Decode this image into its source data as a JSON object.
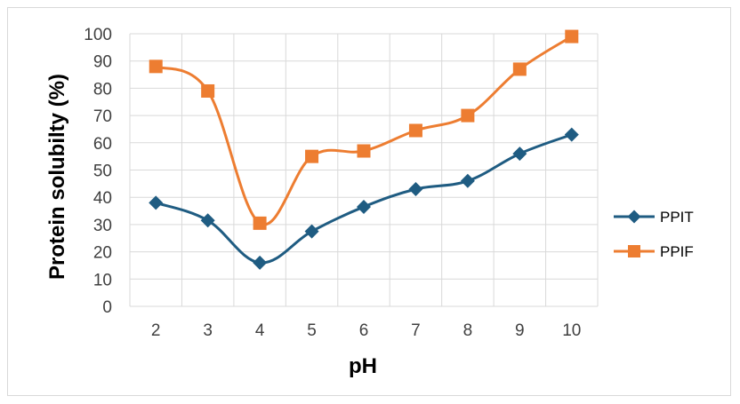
{
  "chart_data": {
    "type": "line",
    "title": "",
    "xlabel": "pH",
    "ylabel": "Protein solubilty (%)",
    "x": [
      2,
      3,
      4,
      5,
      6,
      7,
      8,
      9,
      10
    ],
    "ylim": [
      0,
      100
    ],
    "yticks": [
      0,
      10,
      20,
      30,
      40,
      50,
      60,
      70,
      80,
      90,
      100
    ],
    "grid": true,
    "legend_position": "right",
    "series": [
      {
        "name": "PPIT",
        "color": "#1f5c82",
        "marker": "diamond",
        "values": [
          38,
          31.5,
          16,
          27.5,
          36.5,
          43,
          46,
          56,
          63
        ]
      },
      {
        "name": "PPIF",
        "color": "#ed7d31",
        "marker": "square",
        "values": [
          88,
          79,
          30.5,
          55,
          57,
          64.5,
          70,
          87,
          99
        ]
      }
    ]
  }
}
